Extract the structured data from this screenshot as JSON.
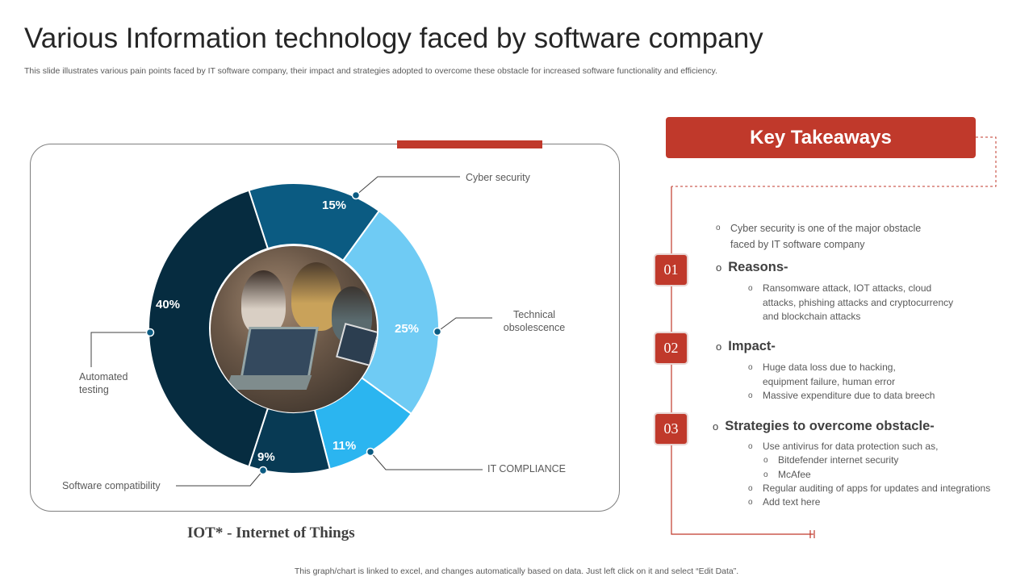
{
  "title": "Various Information technology faced by software company",
  "subtitle": "This slide illustrates various pain points faced by IT software company, their impact and strategies adopted to overcome these obstacle for increased software functionality and efficiency.",
  "chart_data": {
    "type": "pie",
    "title": "",
    "categories": [
      "Cyber security",
      "Technical obsolescence",
      "IT COMPLIANCE",
      "Software compatibility",
      "Automated testing"
    ],
    "values": [
      15,
      25,
      11,
      9,
      40
    ],
    "value_labels": [
      "15%",
      "25%",
      "11%",
      "9%",
      "40%"
    ],
    "colors": [
      "#0b5b82",
      "#6fcbf4",
      "#2bb5f0",
      "#083a54",
      "#062c40"
    ],
    "hole": "center photo"
  },
  "chart_caption": "IOT* - Internet of Things",
  "footnote": "This graph/chart is linked to excel, and changes automatically based on data. Just left click on it and select “Edit Data”.",
  "key_takeaways": {
    "header": "Key Takeaways",
    "intro": "Cyber security is one of the major obstacle faced by IT software company",
    "sections": [
      {
        "number": "01",
        "heading": "Reasons-",
        "bullets": [
          "Ransomware attack, IOT attacks, cloud attacks, phishing attacks and cryptocurrency and blockchain attacks"
        ]
      },
      {
        "number": "02",
        "heading": "Impact-",
        "bullets": [
          "Huge data loss due to hacking, equipment failure, human error",
          "Massive expenditure due to data breech"
        ]
      },
      {
        "number": "03",
        "heading": "Strategies to overcome obstacle-",
        "bullets": [
          "Use antivirus for data protection such as,",
          "Bitdefender internet security",
          "McAfee",
          "Regular auditing of apps for updates and integrations",
          "Add text here"
        ]
      }
    ]
  },
  "bullet_glyph": "o",
  "accent_color": "#c0392b"
}
